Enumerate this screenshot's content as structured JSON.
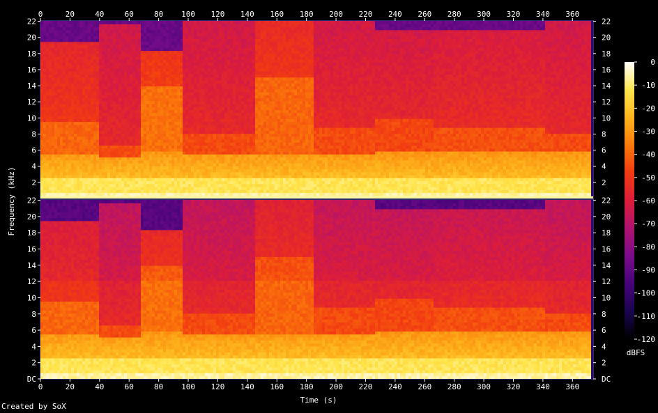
{
  "chart_data": {
    "type": "heatmap",
    "channels": 2,
    "xlabel": "Time (s)",
    "ylabel": "Frequency (kHz)",
    "xlim": [
      0,
      374
    ],
    "ylim_khz": [
      0,
      22.05
    ],
    "x_ticks": [
      0,
      20,
      40,
      60,
      80,
      100,
      120,
      140,
      160,
      180,
      200,
      220,
      240,
      260,
      280,
      300,
      320,
      340,
      360
    ],
    "y_ticks": [
      "DC",
      "2",
      "4",
      "6",
      "8",
      "10",
      "12",
      "14",
      "16",
      "18",
      "20",
      "22"
    ],
    "y_tick_values_khz": [
      0,
      2,
      4,
      6,
      8,
      10,
      12,
      14,
      16,
      18,
      20,
      22
    ],
    "colorbar": {
      "label": "dBFS",
      "ticks": [
        0,
        -10,
        -20,
        -30,
        -40,
        -50,
        -60,
        -70,
        -80,
        -90,
        -100,
        -110,
        -120
      ],
      "range": [
        -120,
        0
      ],
      "stops": [
        "#000000",
        "#1a0550",
        "#46037a",
        "#7a0c8a",
        "#b01270",
        "#dc1d3a",
        "#f23a12",
        "#fb7a0a",
        "#fdb41c",
        "#ffe64e",
        "#ffffff"
      ]
    },
    "segments": [
      {
        "start": 0,
        "end": 38,
        "hf_cutoff_khz": 19.5,
        "midband_cutoff_khz": 9.5,
        "bright_cutoff_khz": 5.5,
        "level_db": -50,
        "striated": false
      },
      {
        "start": 38,
        "end": 67,
        "hf_cutoff_khz": 21.5,
        "midband_cutoff_khz": 6.5,
        "bright_cutoff_khz": 5.0,
        "level_db": -55,
        "striated": false
      },
      {
        "start": 67,
        "end": 95,
        "hf_cutoff_khz": 18.5,
        "midband_cutoff_khz": 14.0,
        "bright_cutoff_khz": 6.0,
        "level_db": -48,
        "striated": true
      },
      {
        "start": 95,
        "end": 145,
        "hf_cutoff_khz": 22.0,
        "midband_cutoff_khz": 8.0,
        "bright_cutoff_khz": 5.5,
        "level_db": -55,
        "striated": true
      },
      {
        "start": 145,
        "end": 184,
        "hf_cutoff_khz": 22.0,
        "midband_cutoff_khz": 15.0,
        "bright_cutoff_khz": 5.5,
        "level_db": -50,
        "striated": true
      },
      {
        "start": 184,
        "end": 225,
        "hf_cutoff_khz": 22.0,
        "midband_cutoff_khz": 9.0,
        "bright_cutoff_khz": 5.5,
        "level_db": -55,
        "striated": false
      },
      {
        "start": 225,
        "end": 265,
        "hf_cutoff_khz": 21.0,
        "midband_cutoff_khz": 10.0,
        "bright_cutoff_khz": 6.0,
        "level_db": -56,
        "striated": false
      },
      {
        "start": 265,
        "end": 340,
        "hf_cutoff_khz": 21.0,
        "midband_cutoff_khz": 9.0,
        "bright_cutoff_khz": 6.0,
        "level_db": -54,
        "striated": false
      },
      {
        "start": 340,
        "end": 374,
        "hf_cutoff_khz": 22.0,
        "midband_cutoff_khz": 8.0,
        "bright_cutoff_khz": 6.0,
        "level_db": -55,
        "striated": false
      }
    ]
  },
  "credit": "Created by SoX"
}
